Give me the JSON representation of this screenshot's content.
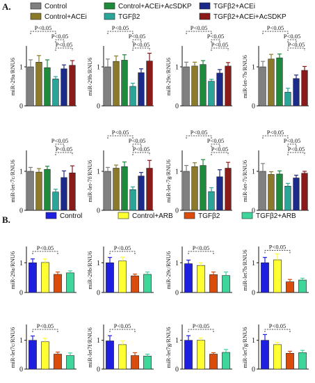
{
  "panel_labels": [
    "A.",
    "B."
  ],
  "legend_A": [
    {
      "name": "Control",
      "color": "#808080"
    },
    {
      "name": "Control+ACEi+AcSDKP",
      "color": "#1e8a3c"
    },
    {
      "name": "TGFβ2+ACEi",
      "color": "#1c2a8a"
    },
    {
      "name": "Control+ACEi",
      "color": "#8b7a2a"
    },
    {
      "name": "TGFβ2",
      "color": "#2aa59a"
    },
    {
      "name": "TGFβ2+ACEi+AcSDKP",
      "color": "#8b1a1a"
    }
  ],
  "legend_B": [
    {
      "name": "Control",
      "color": "#1f1fe0"
    },
    {
      "name": "Control+ARB",
      "color": "#ffff33"
    },
    {
      "name": "TGFβ2",
      "color": "#d94c0c"
    },
    {
      "name": "TGFβ2+ARB",
      "color": "#3ed69a"
    }
  ],
  "sig_label": "P<0.05",
  "chart_data": [
    {
      "panel": "A",
      "type": "bar",
      "ylabel": "miR-29a/RNU6",
      "ylim": [
        0,
        1.5
      ],
      "yticks": [
        0,
        1
      ],
      "values": [
        1.0,
        1.12,
        0.98,
        0.69,
        0.95,
        1.04
      ],
      "errors": [
        0.18,
        0.17,
        0.2,
        0.06,
        0.1,
        0.12
      ],
      "brackets": [
        {
          "from": 0,
          "to": 3,
          "level": 0
        },
        {
          "from": 3,
          "to": 4,
          "level": 1
        },
        {
          "from": 3,
          "to": 5,
          "level": 2
        }
      ]
    },
    {
      "panel": "A",
      "type": "bar",
      "ylabel": "miR-29b/RNU6",
      "ylim": [
        0,
        1.5
      ],
      "yticks": [
        0,
        1
      ],
      "values": [
        1.0,
        1.14,
        1.17,
        0.5,
        0.85,
        1.15
      ],
      "errors": [
        0.2,
        0.14,
        0.14,
        0.08,
        0.1,
        0.2
      ],
      "brackets": [
        {
          "from": 0,
          "to": 3,
          "level": 0
        },
        {
          "from": 3,
          "to": 4,
          "level": 1
        },
        {
          "from": 3,
          "to": 5,
          "level": 2
        }
      ]
    },
    {
      "panel": "A",
      "type": "bar",
      "ylabel": "miR-29c/RNU6",
      "ylim": [
        0,
        1.5
      ],
      "yticks": [
        0,
        1
      ],
      "values": [
        1.0,
        1.02,
        1.06,
        0.63,
        0.84,
        1.02
      ],
      "errors": [
        0.12,
        0.1,
        0.1,
        0.05,
        0.09,
        0.09
      ],
      "brackets": [
        {
          "from": 0,
          "to": 3,
          "level": 0
        },
        {
          "from": 3,
          "to": 4,
          "level": 1
        },
        {
          "from": 3,
          "to": 5,
          "level": 2
        }
      ]
    },
    {
      "panel": "A",
      "type": "bar",
      "ylabel": "miR-let-7b/RNU6",
      "ylim": [
        0,
        1.5
      ],
      "yticks": [
        0,
        1
      ],
      "values": [
        1.0,
        1.2,
        1.23,
        0.35,
        0.7,
        0.91
      ],
      "errors": [
        0.14,
        0.12,
        0.1,
        0.1,
        0.09,
        0.1
      ],
      "brackets": [
        {
          "from": 0,
          "to": 3,
          "level": 0
        },
        {
          "from": 3,
          "to": 4,
          "level": 1
        },
        {
          "from": 3,
          "to": 5,
          "level": 2
        }
      ]
    },
    {
      "panel": "A",
      "type": "bar",
      "ylabel": "miR-let-7c/RNU6",
      "ylim": [
        0,
        1.5
      ],
      "yticks": [
        0,
        1
      ],
      "values": [
        1.0,
        0.98,
        1.05,
        0.47,
        0.84,
        0.96
      ],
      "errors": [
        0.1,
        0.09,
        0.08,
        0.07,
        0.17,
        0.18
      ],
      "brackets": [
        {
          "from": 3,
          "to": 4,
          "level": 1
        },
        {
          "from": 3,
          "to": 5,
          "level": 2
        }
      ]
    },
    {
      "panel": "A",
      "type": "bar",
      "ylabel": "miR-let-7f/RNU6",
      "ylim": [
        0,
        1.5
      ],
      "yticks": [
        0,
        1
      ],
      "values": [
        1.0,
        1.08,
        1.12,
        0.53,
        0.88,
        1.08
      ],
      "errors": [
        0.1,
        0.08,
        0.12,
        0.07,
        0.09,
        0.2
      ],
      "brackets": [
        {
          "from": 0,
          "to": 3,
          "level": 0
        },
        {
          "from": 3,
          "to": 4,
          "level": 1
        },
        {
          "from": 3,
          "to": 5,
          "level": 2
        }
      ]
    },
    {
      "panel": "A",
      "type": "bar",
      "ylabel": "miR-let-7g/RNU6",
      "ylim": [
        0,
        1.5
      ],
      "yticks": [
        0,
        1
      ],
      "values": [
        1.0,
        1.12,
        1.15,
        0.48,
        0.86,
        1.08
      ],
      "errors": [
        0.15,
        0.1,
        0.15,
        0.1,
        0.18,
        0.15
      ],
      "brackets": [
        {
          "from": 0,
          "to": 3,
          "level": 0
        },
        {
          "from": 3,
          "to": 4,
          "level": 1
        },
        {
          "from": 3,
          "to": 5,
          "level": 2
        }
      ]
    },
    {
      "panel": "A",
      "type": "bar",
      "ylabel": "miR-let-7i/RNU6",
      "ylim": [
        0,
        1.5
      ],
      "yticks": [
        0,
        1
      ],
      "values": [
        1.0,
        0.92,
        0.93,
        0.62,
        0.83,
        0.95
      ],
      "errors": [
        0.2,
        0.07,
        0.08,
        0.07,
        0.07,
        0.05
      ],
      "brackets": [
        {
          "from": 0,
          "to": 3,
          "level": 0
        },
        {
          "from": 3,
          "to": 4,
          "level": 1
        },
        {
          "from": 3,
          "to": 5,
          "level": 2
        }
      ]
    },
    {
      "panel": "B",
      "type": "bar",
      "ylabel": "miR-29a/RNU6",
      "ylim": [
        0,
        1.5
      ],
      "yticks": [
        0,
        1
      ],
      "values": [
        1.0,
        1.01,
        0.61,
        0.66
      ],
      "errors": [
        0.13,
        0.12,
        0.08,
        0.07
      ],
      "brackets": [
        {
          "from": 0,
          "to": 2,
          "level": 0
        }
      ]
    },
    {
      "panel": "B",
      "type": "bar",
      "ylabel": "miR-29b/RNU6",
      "ylim": [
        0,
        1.5
      ],
      "yticks": [
        0,
        1
      ],
      "values": [
        1.0,
        1.06,
        0.56,
        0.61
      ],
      "errors": [
        0.18,
        0.13,
        0.06,
        0.08
      ],
      "brackets": [
        {
          "from": 0,
          "to": 2,
          "level": 0
        }
      ]
    },
    {
      "panel": "B",
      "type": "bar",
      "ylabel": "miR-29c/RNU6",
      "ylim": [
        0,
        1.5
      ],
      "yticks": [
        0,
        1
      ],
      "values": [
        0.97,
        0.91,
        0.6,
        0.57
      ],
      "errors": [
        0.12,
        0.09,
        0.09,
        0.12
      ],
      "brackets": [
        {
          "from": 0,
          "to": 2,
          "level": 0
        }
      ]
    },
    {
      "panel": "B",
      "type": "bar",
      "ylabel": "miR-let7b/RNU6",
      "ylim": [
        0,
        1.5
      ],
      "yticks": [
        0,
        1
      ],
      "values": [
        1.0,
        1.1,
        0.36,
        0.42
      ],
      "errors": [
        0.18,
        0.2,
        0.08,
        0.06
      ],
      "brackets": [
        {
          "from": 0,
          "to": 2,
          "level": 0
        }
      ]
    },
    {
      "panel": "B",
      "type": "bar",
      "ylabel": "miR-let7c/RNU6",
      "ylim": [
        0,
        1.5
      ],
      "yticks": [
        0,
        1
      ],
      "values": [
        1.0,
        0.95,
        0.52,
        0.47
      ],
      "errors": [
        0.15,
        0.12,
        0.07,
        0.09
      ],
      "brackets": [
        {
          "from": 0,
          "to": 2,
          "level": 0
        }
      ]
    },
    {
      "panel": "B",
      "type": "bar",
      "ylabel": "miR-let7f/RNU6",
      "ylim": [
        0,
        1.5
      ],
      "yticks": [
        0,
        1
      ],
      "values": [
        0.98,
        0.85,
        0.47,
        0.45
      ],
      "errors": [
        0.18,
        0.13,
        0.1,
        0.07
      ],
      "brackets": [
        {
          "from": 0,
          "to": 2,
          "level": 0
        }
      ]
    },
    {
      "panel": "B",
      "type": "bar",
      "ylabel": "miR-let7g/RNU6",
      "ylim": [
        0,
        1.5
      ],
      "yticks": [
        0,
        1
      ],
      "values": [
        1.0,
        1.0,
        0.52,
        0.58
      ],
      "errors": [
        0.16,
        0.08,
        0.05,
        0.1
      ],
      "brackets": [
        {
          "from": 0,
          "to": 2,
          "level": 0
        }
      ]
    },
    {
      "panel": "B",
      "type": "bar",
      "ylabel": "miR-let7g/RNU6",
      "ylim": [
        0,
        1.5
      ],
      "yticks": [
        0,
        1
      ],
      "values": [
        1.0,
        0.85,
        0.55,
        0.57
      ],
      "errors": [
        0.2,
        0.08,
        0.07,
        0.08
      ],
      "brackets": [
        {
          "from": 0,
          "to": 2,
          "level": 0
        }
      ]
    }
  ]
}
